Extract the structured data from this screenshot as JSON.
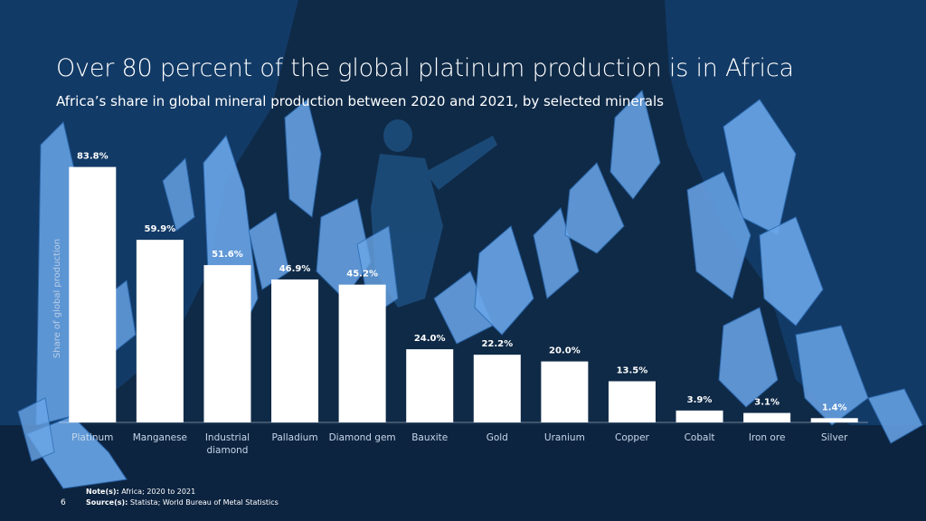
{
  "slide": {
    "title": "Over 80 percent of the global platinum production is in Africa",
    "subtitle": "Africa’s share in global mineral production between 2020 and 2021, by selected minerals",
    "page_number": "6",
    "note_label": "Note(s):",
    "note_text": "Africa; 2020 to 2021",
    "source_label": "Source(s):",
    "source_text": "Statista; World Bureau of Metal Statistics"
  },
  "colors": {
    "background": "#0f2a47",
    "bar": "#ffffff",
    "crystal": "#6aa6e8",
    "text": "#ffffff"
  },
  "chart_data": {
    "type": "bar",
    "title": "Africa’s share in global mineral production between 2020 and 2021, by selected minerals",
    "xlabel": "",
    "ylabel": "Share of global production",
    "ylim": [
      0,
      100
    ],
    "unit": "%",
    "categories": [
      "Platinum",
      "Manganese",
      "Industrial diamond",
      "Palladium",
      "Diamond gem",
      "Bauxite",
      "Gold",
      "Uranium",
      "Copper",
      "Cobalt",
      "Iron ore",
      "Silver"
    ],
    "values": [
      83.8,
      59.9,
      51.6,
      46.9,
      45.2,
      24.0,
      22.2,
      20.0,
      13.5,
      3.9,
      3.1,
      1.4
    ],
    "value_labels": [
      "83.8%",
      "59.9%",
      "51.6%",
      "46.9%",
      "45.2%",
      "24.0%",
      "22.2%",
      "20.0%",
      "13.5%",
      "3.9%",
      "3.1%",
      "1.4%"
    ]
  }
}
